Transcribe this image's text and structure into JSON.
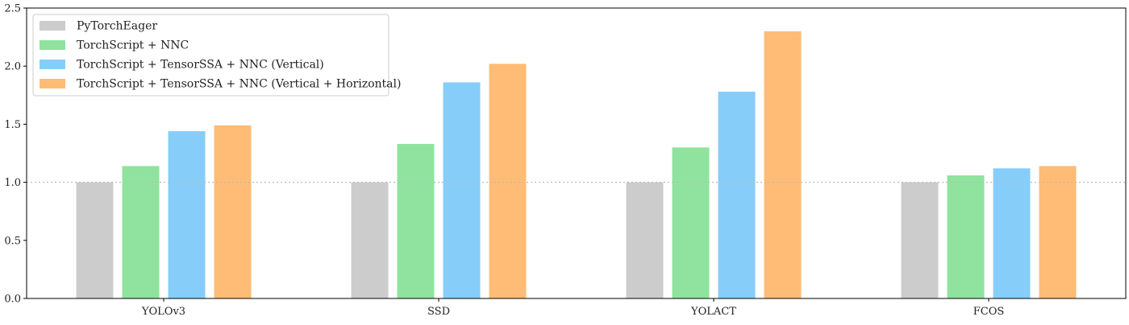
{
  "chart_data": {
    "type": "bar",
    "title": "",
    "xlabel": "",
    "ylabel": "",
    "categories": [
      "YOLOv3",
      "SSD",
      "YOLACT",
      "FCOS"
    ],
    "ylim": [
      0,
      2.5
    ],
    "yticks": [
      0.0,
      0.5,
      1.0,
      1.5,
      2.0,
      2.5
    ],
    "ytick_labels": [
      "0.0",
      "0.5",
      "1.0",
      "1.5",
      "2.0",
      "2.5"
    ],
    "reference_line": {
      "y": 1.0,
      "style": "dotted",
      "color": "#bbbbbb"
    },
    "legend_position": "top-left",
    "grid": false,
    "series": [
      {
        "name": "PyTorchEager",
        "color": "#cccccc",
        "values": [
          1.0,
          1.0,
          1.0,
          1.0
        ]
      },
      {
        "name": "TorchScript + NNC",
        "color": "#8fe39e",
        "values": [
          1.14,
          1.33,
          1.3,
          1.06
        ]
      },
      {
        "name": "TorchScript + TensorSSA + NNC (Vertical)",
        "color": "#87cdfa",
        "values": [
          1.44,
          1.86,
          1.78,
          1.12
        ]
      },
      {
        "name": "TorchScript + TensorSSA + NNC (Vertical + Horizontal)",
        "color": "#ffbc76",
        "values": [
          1.49,
          2.02,
          2.3,
          1.14
        ]
      }
    ]
  }
}
